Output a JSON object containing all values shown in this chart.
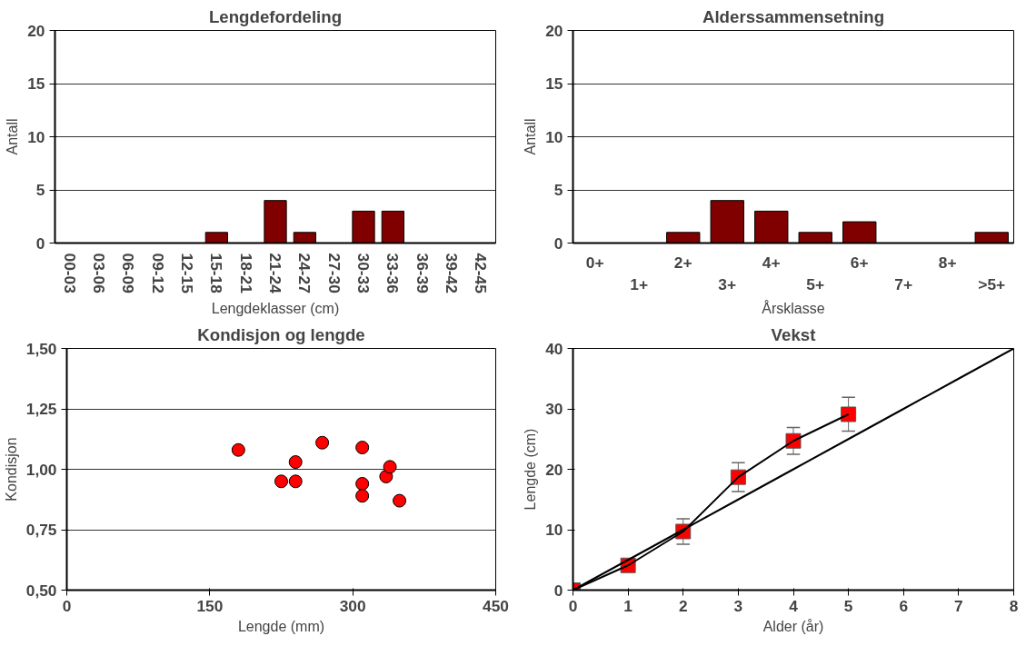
{
  "chart_data": [
    {
      "type": "bar",
      "title": "Lengdefordeling",
      "xlabel": "Lengdeklasser (cm)",
      "ylabel": "Antall",
      "categories": [
        "00-03",
        "03-06",
        "06-09",
        "09-12",
        "12-15",
        "15-18",
        "18-21",
        "21-24",
        "24-27",
        "27-30",
        "30-33",
        "33-36",
        "36-39",
        "39-42",
        "42-45"
      ],
      "values": [
        0,
        0,
        0,
        0,
        0,
        1,
        0,
        4,
        1,
        0,
        3,
        3,
        0,
        0,
        0
      ],
      "color": "#800000",
      "ylim": [
        0,
        20
      ],
      "yticks": [
        0,
        5,
        10,
        15,
        20
      ],
      "grid": "y"
    },
    {
      "type": "bar",
      "title": "Alderssammensetning",
      "xlabel": "Årsklasse",
      "ylabel": "Antall",
      "categories": [
        "0+",
        "1+",
        "2+",
        "3+",
        "4+",
        "5+",
        "6+",
        "7+",
        "8+",
        ">5+"
      ],
      "values": [
        0,
        0,
        1,
        4,
        3,
        1,
        2,
        0,
        0,
        1
      ],
      "color": "#800000",
      "ylim": [
        0,
        20
      ],
      "yticks": [
        0,
        5,
        10,
        15,
        20
      ],
      "grid": "y"
    },
    {
      "type": "scatter",
      "title": "Kondisjon og lengde",
      "xlabel": "Lengde (mm)",
      "ylabel": "Kondisjon",
      "x": [
        180,
        225,
        240,
        240,
        268,
        310,
        310,
        310,
        335,
        339,
        349
      ],
      "values": [
        1.08,
        0.95,
        1.03,
        0.95,
        1.11,
        1.09,
        0.94,
        0.89,
        0.97,
        1.01,
        0.87
      ],
      "color": "#ff0000",
      "marker": "circle",
      "xlim": [
        0,
        450
      ],
      "xticks": [
        0,
        150,
        300,
        450
      ],
      "ylim": [
        0.5,
        1.5
      ],
      "yticks": [
        {
          "value": 0.5,
          "label": "0,50"
        },
        {
          "value": 0.75,
          "label": "0,75"
        },
        {
          "value": 1.0,
          "label": "1,00"
        },
        {
          "value": 1.25,
          "label": "1,25"
        },
        {
          "value": 1.5,
          "label": "1,50"
        }
      ],
      "grid": "y"
    },
    {
      "type": "line",
      "title": "Vekst",
      "xlabel": "Alder (år)",
      "ylabel": "Lengde (cm)",
      "xlim": [
        0,
        8
      ],
      "xticks": [
        0,
        1,
        2,
        3,
        4,
        5,
        6,
        7,
        8
      ],
      "ylim": [
        0,
        40
      ],
      "yticks": [
        0,
        10,
        20,
        30,
        40
      ],
      "grid": false,
      "series": [
        {
          "color": "#ff0000",
          "marker": "square",
          "x": [
            0,
            1,
            2,
            3,
            4,
            5
          ],
          "values": [
            0,
            4.1,
            9.7,
            18.7,
            24.7,
            29.1
          ],
          "errors": [
            null,
            null,
            2.1,
            2.4,
            2.2,
            2.8
          ]
        },
        {
          "color": "#000000",
          "marker": "none",
          "x": [
            0,
            1,
            2,
            3,
            4,
            5,
            6,
            7,
            8
          ],
          "values": [
            0,
            5,
            10,
            15,
            20,
            25,
            30,
            35,
            40
          ]
        }
      ]
    }
  ]
}
